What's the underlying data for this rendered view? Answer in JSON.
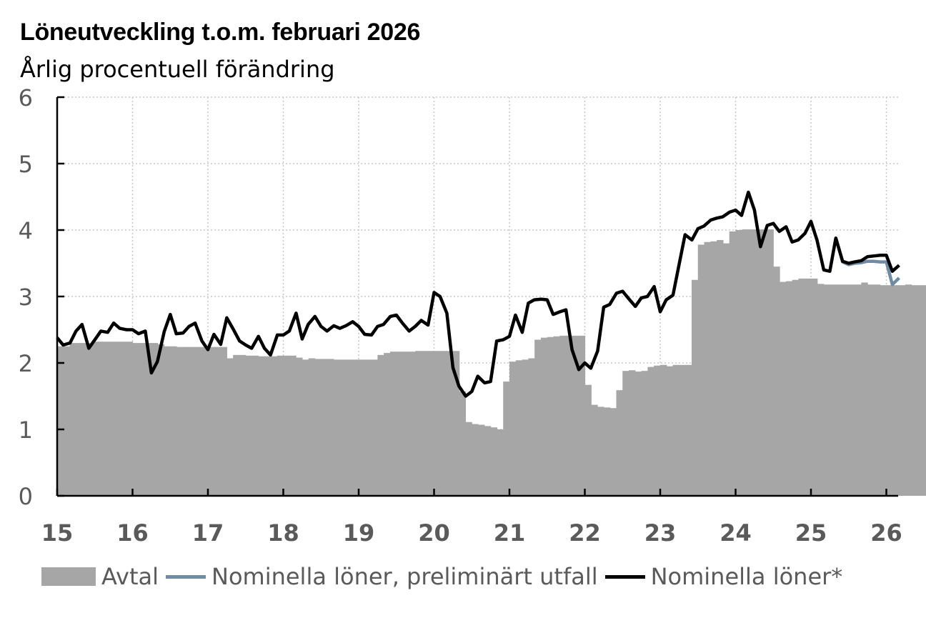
{
  "chart_data": {
    "type": "bar+line",
    "title": "Löneutveckling t.o.m. februari 2026",
    "subtitle": "Årlig procentuell förändring",
    "ylim": [
      0,
      6
    ],
    "yticks": [
      "0",
      "1",
      "2",
      "3",
      "4",
      "5",
      "6"
    ],
    "xlim": [
      2015.0,
      2026.17
    ],
    "xticks": [
      "15",
      "16",
      "17",
      "18",
      "19",
      "20",
      "21",
      "22",
      "23",
      "24",
      "25",
      "26"
    ],
    "grid": true,
    "legend_position": "bottom",
    "colors": {
      "avtal": "#a6a6a6",
      "preliminary": "#6f8ca4",
      "nominal": "#000000"
    },
    "series": [
      {
        "name": "Avtal",
        "type": "bar",
        "x_start": 2015.0,
        "step": 0.0833333,
        "values": [
          2.25,
          2.25,
          2.3,
          2.3,
          2.3,
          2.3,
          2.32,
          2.32,
          2.32,
          2.32,
          2.32,
          2.32,
          2.3,
          2.3,
          2.3,
          2.3,
          2.28,
          2.25,
          2.25,
          2.24,
          2.24,
          2.24,
          2.24,
          2.24,
          2.24,
          2.24,
          2.24,
          2.07,
          2.12,
          2.12,
          2.11,
          2.11,
          2.1,
          2.1,
          2.1,
          2.11,
          2.11,
          2.11,
          2.08,
          2.05,
          2.07,
          2.06,
          2.06,
          2.06,
          2.05,
          2.05,
          2.05,
          2.05,
          2.05,
          2.05,
          2.05,
          2.12,
          2.15,
          2.17,
          2.17,
          2.17,
          2.17,
          2.18,
          2.18,
          2.18,
          2.18,
          2.18,
          2.18,
          2.18,
          1.57,
          1.11,
          1.08,
          1.07,
          1.05,
          1.03,
          1.0,
          1.72,
          2.02,
          2.04,
          2.05,
          2.07,
          2.35,
          2.38,
          2.39,
          2.4,
          2.41,
          2.41,
          2.41,
          2.41,
          1.67,
          1.37,
          1.34,
          1.33,
          1.32,
          1.59,
          1.88,
          1.89,
          1.87,
          1.88,
          1.94,
          1.96,
          1.97,
          1.95,
          1.97,
          1.97,
          1.97,
          3.25,
          3.78,
          3.82,
          3.83,
          3.85,
          3.8,
          3.98,
          4.0,
          4.01,
          4.01,
          4.01,
          4.01,
          4.01,
          3.45,
          3.22,
          3.23,
          3.25,
          3.27,
          3.27,
          3.27,
          3.19,
          3.18,
          3.18,
          3.18,
          3.18,
          3.18,
          3.18,
          3.21,
          3.18,
          3.18,
          3.17,
          3.17,
          3.17,
          3.17,
          3.18,
          3.17,
          3.17,
          3.17,
          3.17
        ]
      },
      {
        "name": "Nominella löner, preliminärt utfall",
        "type": "line",
        "points": [
          [
            2025.33,
            3.88
          ],
          [
            2025.42,
            3.52
          ],
          [
            2025.5,
            3.48
          ],
          [
            2025.58,
            3.5
          ],
          [
            2025.67,
            3.51
          ],
          [
            2025.75,
            3.53
          ],
          [
            2025.83,
            3.53
          ],
          [
            2025.92,
            3.52
          ],
          [
            2026.0,
            3.52
          ],
          [
            2026.08,
            3.18
          ],
          [
            2026.17,
            3.28
          ]
        ]
      },
      {
        "name": "Nominella löner*",
        "type": "line",
        "points": [
          [
            2015.0,
            2.38
          ],
          [
            2015.08,
            2.27
          ],
          [
            2015.17,
            2.3
          ],
          [
            2015.25,
            2.48
          ],
          [
            2015.33,
            2.58
          ],
          [
            2015.42,
            2.22
          ],
          [
            2015.5,
            2.35
          ],
          [
            2015.58,
            2.48
          ],
          [
            2015.67,
            2.46
          ],
          [
            2015.75,
            2.6
          ],
          [
            2015.83,
            2.52
          ],
          [
            2015.92,
            2.5
          ],
          [
            2016.0,
            2.5
          ],
          [
            2016.08,
            2.44
          ],
          [
            2016.17,
            2.48
          ],
          [
            2016.25,
            1.85
          ],
          [
            2016.33,
            2.02
          ],
          [
            2016.42,
            2.47
          ],
          [
            2016.5,
            2.73
          ],
          [
            2016.58,
            2.44
          ],
          [
            2016.67,
            2.45
          ],
          [
            2016.75,
            2.55
          ],
          [
            2016.83,
            2.6
          ],
          [
            2016.92,
            2.33
          ],
          [
            2017.0,
            2.2
          ],
          [
            2017.08,
            2.43
          ],
          [
            2017.17,
            2.28
          ],
          [
            2017.25,
            2.68
          ],
          [
            2017.33,
            2.52
          ],
          [
            2017.42,
            2.33
          ],
          [
            2017.5,
            2.27
          ],
          [
            2017.58,
            2.22
          ],
          [
            2017.67,
            2.4
          ],
          [
            2017.75,
            2.22
          ],
          [
            2017.83,
            2.12
          ],
          [
            2017.92,
            2.42
          ],
          [
            2018.0,
            2.42
          ],
          [
            2018.08,
            2.48
          ],
          [
            2018.17,
            2.75
          ],
          [
            2018.25,
            2.36
          ],
          [
            2018.33,
            2.58
          ],
          [
            2018.42,
            2.7
          ],
          [
            2018.5,
            2.55
          ],
          [
            2018.58,
            2.48
          ],
          [
            2018.67,
            2.56
          ],
          [
            2018.75,
            2.52
          ],
          [
            2018.83,
            2.56
          ],
          [
            2018.92,
            2.62
          ],
          [
            2019.0,
            2.55
          ],
          [
            2019.08,
            2.43
          ],
          [
            2019.17,
            2.42
          ],
          [
            2019.25,
            2.55
          ],
          [
            2019.33,
            2.58
          ],
          [
            2019.42,
            2.7
          ],
          [
            2019.5,
            2.72
          ],
          [
            2019.58,
            2.6
          ],
          [
            2019.67,
            2.48
          ],
          [
            2019.75,
            2.55
          ],
          [
            2019.83,
            2.64
          ],
          [
            2019.92,
            2.57
          ],
          [
            2020.0,
            3.06
          ],
          [
            2020.08,
            3.0
          ],
          [
            2020.17,
            2.75
          ],
          [
            2020.25,
            1.93
          ],
          [
            2020.33,
            1.65
          ],
          [
            2020.42,
            1.5
          ],
          [
            2020.5,
            1.57
          ],
          [
            2020.58,
            1.8
          ],
          [
            2020.67,
            1.7
          ],
          [
            2020.75,
            1.72
          ],
          [
            2020.83,
            2.33
          ],
          [
            2020.92,
            2.35
          ],
          [
            2021.0,
            2.4
          ],
          [
            2021.08,
            2.72
          ],
          [
            2021.17,
            2.46
          ],
          [
            2021.25,
            2.9
          ],
          [
            2021.33,
            2.95
          ],
          [
            2021.42,
            2.96
          ],
          [
            2021.5,
            2.95
          ],
          [
            2021.58,
            2.73
          ],
          [
            2021.67,
            2.77
          ],
          [
            2021.75,
            2.8
          ],
          [
            2021.83,
            2.2
          ],
          [
            2021.92,
            1.9
          ],
          [
            2022.0,
            2.0
          ],
          [
            2022.08,
            1.92
          ],
          [
            2022.17,
            2.18
          ],
          [
            2022.25,
            2.84
          ],
          [
            2022.33,
            2.88
          ],
          [
            2022.42,
            3.05
          ],
          [
            2022.5,
            3.08
          ],
          [
            2022.58,
            2.97
          ],
          [
            2022.67,
            2.85
          ],
          [
            2022.75,
            2.98
          ],
          [
            2022.83,
            3.0
          ],
          [
            2022.92,
            3.15
          ],
          [
            2023.0,
            2.77
          ],
          [
            2023.08,
            2.95
          ],
          [
            2023.17,
            3.02
          ],
          [
            2023.25,
            3.48
          ],
          [
            2023.33,
            3.93
          ],
          [
            2023.42,
            3.85
          ],
          [
            2023.5,
            4.02
          ],
          [
            2023.58,
            4.06
          ],
          [
            2023.67,
            4.15
          ],
          [
            2023.75,
            4.18
          ],
          [
            2023.83,
            4.2
          ],
          [
            2023.92,
            4.27
          ],
          [
            2024.0,
            4.3
          ],
          [
            2024.08,
            4.22
          ],
          [
            2024.17,
            4.57
          ],
          [
            2024.25,
            4.3
          ],
          [
            2024.33,
            3.75
          ],
          [
            2024.42,
            4.07
          ],
          [
            2024.5,
            4.1
          ],
          [
            2024.58,
            3.98
          ],
          [
            2024.67,
            4.05
          ],
          [
            2024.75,
            3.82
          ],
          [
            2024.83,
            3.85
          ],
          [
            2024.92,
            3.95
          ],
          [
            2025.0,
            4.13
          ],
          [
            2025.08,
            3.85
          ],
          [
            2025.17,
            3.4
          ],
          [
            2025.25,
            3.38
          ],
          [
            2025.33,
            3.88
          ],
          [
            2025.42,
            3.53
          ],
          [
            2025.5,
            3.5
          ],
          [
            2025.58,
            3.52
          ],
          [
            2025.67,
            3.54
          ],
          [
            2025.75,
            3.6
          ],
          [
            2025.83,
            3.61
          ],
          [
            2025.92,
            3.62
          ],
          [
            2026.0,
            3.62
          ],
          [
            2026.08,
            3.38
          ],
          [
            2026.17,
            3.47
          ]
        ]
      }
    ]
  }
}
